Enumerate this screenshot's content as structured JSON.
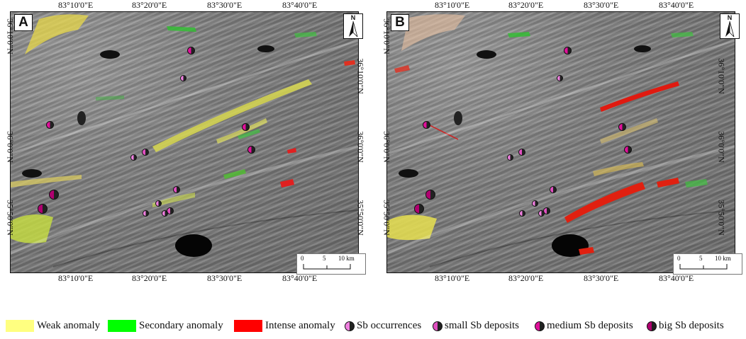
{
  "panels": [
    {
      "letter": "A",
      "north": "N",
      "scale": {
        "labels": [
          "0",
          "5",
          "10 km"
        ]
      },
      "top_ticks": [
        "83°10'0\"E",
        "83°20'0\"E",
        "83°30'0\"E",
        "83°40'0\"E"
      ],
      "bottom_ticks": [
        "83°10'0\"E",
        "83°20'0\"E",
        "83°30'0\"E",
        "83°40'0\"E"
      ],
      "left_ticks": [
        "36°10'0\"N",
        "36°0'0\"N",
        "35°50'0\"N"
      ],
      "right_ticks": [
        "36°10'0\"N",
        "36°0'0\"N",
        "35°50'0\"N"
      ]
    },
    {
      "letter": "B",
      "north": "N",
      "scale": {
        "labels": [
          "0",
          "5",
          "10 km"
        ]
      },
      "top_ticks": [
        "83°10'0\"E",
        "83°20'0\"E",
        "83°30'0\"E",
        "83°40'0\"E"
      ],
      "bottom_ticks": [
        "83°10'0\"E",
        "83°20'0\"E",
        "83°30'0\"E",
        "83°40'0\"E"
      ],
      "left_ticks": [
        "36°10'0\"N",
        "36°0'0\"N",
        "35°50'0\"N"
      ],
      "right_ticks": [
        "36°10'0\"N",
        "36°0'0\"N",
        "35°50'0\"N"
      ]
    }
  ],
  "legend": {
    "weak": {
      "label": "Weak anomaly",
      "color": "#ffff80"
    },
    "secondary": {
      "label": "Secondary anomaly",
      "color": "#00ff00"
    },
    "intense": {
      "label": "Intense anomaly",
      "color": "#ff0000"
    },
    "occurrences": {
      "label": "Sb occurrences",
      "color": "#f080e0"
    },
    "small": {
      "label": "small Sb deposits",
      "color": "#e050c0"
    },
    "medium": {
      "label": "medium Sb deposits",
      "color": "#e0109a"
    },
    "big": {
      "label": "big Sb deposits",
      "color": "#b00070"
    }
  }
}
